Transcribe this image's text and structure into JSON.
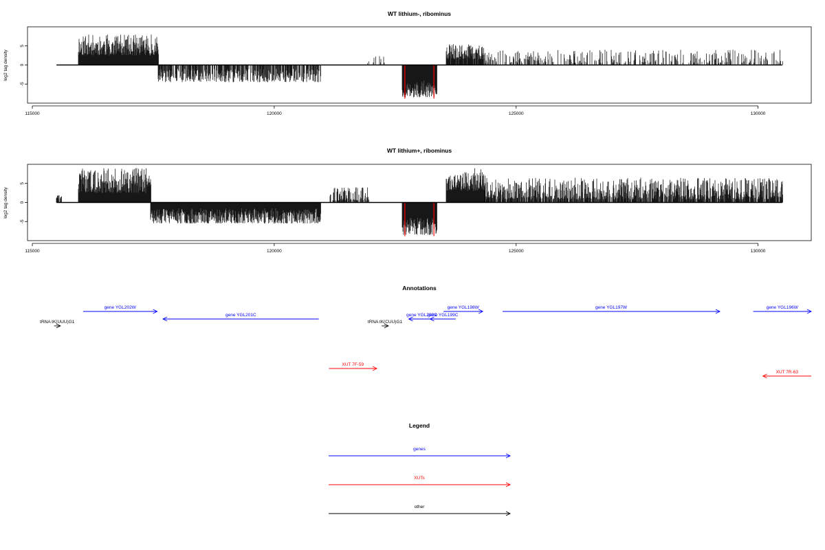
{
  "colors": {
    "gene": "#0000ff",
    "xut": "#ff0000",
    "other": "#000000",
    "highlight": "#ff0000"
  },
  "chart_data": [
    {
      "type": "bar",
      "title": "WT lithium-, ribominus",
      "ylabel": "log2 tag density",
      "xlim": [
        114900,
        131100
      ],
      "ylim": [
        -10,
        10
      ],
      "x_ticks": [
        115000,
        120000,
        125000,
        130000
      ],
      "y_ticks": [
        -5,
        0,
        5
      ],
      "baseline_range": [
        115500,
        130500
      ],
      "segments": [
        {
          "start": 115950,
          "end": 117600,
          "min": 2.5,
          "max": 8.0,
          "density": 1.0,
          "seed": 11
        },
        {
          "start": 117600,
          "end": 120950,
          "min": -4.5,
          "max": -1.0,
          "density": 0.7,
          "seed": 12
        },
        {
          "start": 121900,
          "end": 122300,
          "min": 0.5,
          "max": 2.5,
          "density": 0.15,
          "seed": 13
        },
        {
          "start": 122650,
          "end": 123350,
          "min": -8.5,
          "max": -4.0,
          "density": 1.0,
          "seed": 14
        },
        {
          "start": 123550,
          "end": 124350,
          "min": 1.5,
          "max": 5.5,
          "density": 0.9,
          "seed": 15
        },
        {
          "start": 124350,
          "end": 130500,
          "min": 0.5,
          "max": 4.0,
          "density": 0.35,
          "seed": 16
        }
      ],
      "red_lines": [
        {
          "x": 122700,
          "y": -8.8
        },
        {
          "x": 123300,
          "y": -8.8
        }
      ]
    },
    {
      "type": "bar",
      "title": "WT lithium+, ribominus",
      "ylabel": "log2 tag density",
      "xlim": [
        114900,
        131100
      ],
      "ylim": [
        -10,
        10
      ],
      "x_ticks": [
        115000,
        120000,
        125000,
        130000
      ],
      "y_ticks": [
        -5,
        0,
        5
      ],
      "baseline_range": [
        115500,
        130500
      ],
      "segments": [
        {
          "start": 115500,
          "end": 115600,
          "min": 1.0,
          "max": 2.0,
          "density": 0.6,
          "seed": 21
        },
        {
          "start": 115950,
          "end": 117450,
          "min": 2.5,
          "max": 9.0,
          "density": 1.0,
          "seed": 22
        },
        {
          "start": 117450,
          "end": 120950,
          "min": -5.5,
          "max": -1.5,
          "density": 1.0,
          "seed": 23
        },
        {
          "start": 121150,
          "end": 121950,
          "min": 0.5,
          "max": 4.0,
          "density": 0.6,
          "seed": 24
        },
        {
          "start": 122650,
          "end": 123350,
          "min": -8.5,
          "max": -4.0,
          "density": 1.0,
          "seed": 25
        },
        {
          "start": 123550,
          "end": 124350,
          "min": 3.0,
          "max": 9.0,
          "density": 1.0,
          "seed": 26
        },
        {
          "start": 124350,
          "end": 130500,
          "min": 0.8,
          "max": 6.5,
          "density": 0.8,
          "seed": 27
        }
      ],
      "red_lines": [
        {
          "x": 122700,
          "y": -8.8
        },
        {
          "x": 123300,
          "y": -8.8
        }
      ]
    }
  ],
  "annotations": {
    "title": "Annotations",
    "features": [
      {
        "label": "tRNA tK(UUU)G1",
        "kind": "other",
        "start": 115450,
        "end": 115580,
        "strand": "+"
      },
      {
        "label": "gene YGL202W",
        "kind": "gene",
        "start": 116050,
        "end": 117580,
        "strand": "+"
      },
      {
        "label": "gene YGL201C",
        "kind": "gene",
        "start": 117700,
        "end": 120920,
        "strand": "-"
      },
      {
        "label": "tRNA tK(CUU)G1",
        "kind": "other",
        "start": 122220,
        "end": 122360,
        "strand": "+"
      },
      {
        "label": "gene YGL200C",
        "kind": "gene",
        "start": 122780,
        "end": 123320,
        "strand": "-"
      },
      {
        "label": "gene YGL199C",
        "kind": "gene",
        "start": 123220,
        "end": 123750,
        "strand": "-"
      },
      {
        "label": "gene YGL198W",
        "kind": "gene",
        "start": 123500,
        "end": 124310,
        "strand": "+"
      },
      {
        "label": "gene YGL197W",
        "kind": "gene",
        "start": 124720,
        "end": 129210,
        "strand": "+"
      },
      {
        "label": "gene YGL196W",
        "kind": "gene",
        "start": 129900,
        "end": 131100,
        "strand": "+"
      },
      {
        "label": "XUT 7F-59",
        "kind": "xut",
        "start": 121130,
        "end": 122120,
        "strand": "+"
      },
      {
        "label": "XUT 7R-63",
        "kind": "xut",
        "start": 130100,
        "end": 131100,
        "strand": "-"
      }
    ]
  },
  "legend": {
    "title": "Legend",
    "items": [
      {
        "label": "genes",
        "kind": "gene"
      },
      {
        "label": "XUTs",
        "kind": "xut"
      },
      {
        "label": "other",
        "kind": "other"
      }
    ]
  }
}
